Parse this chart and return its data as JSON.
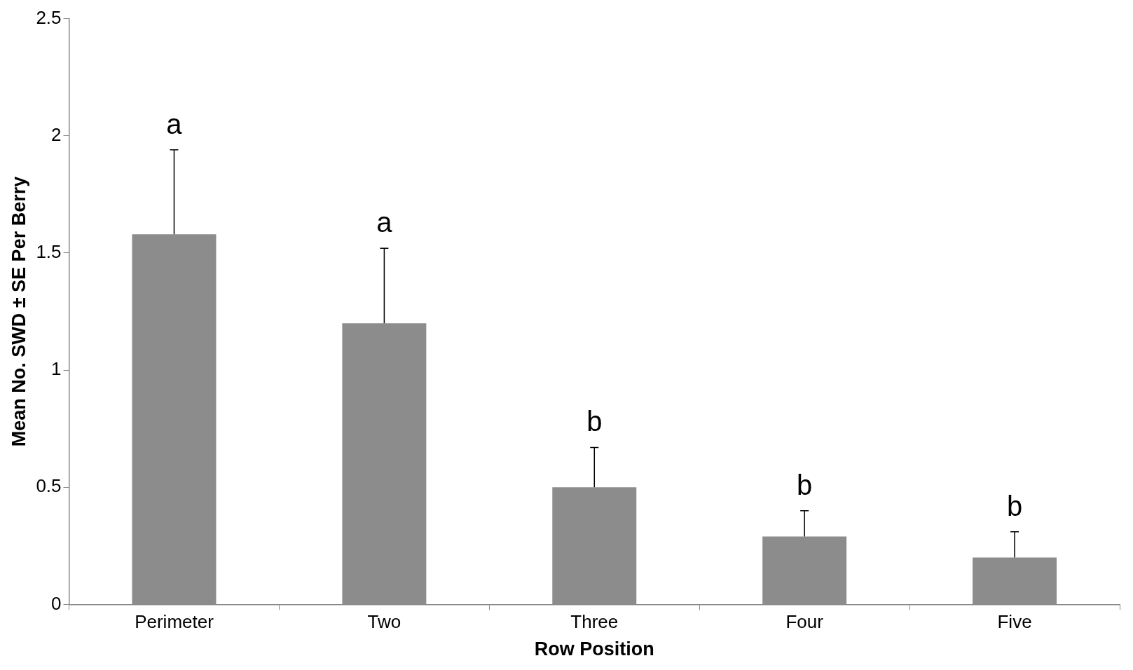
{
  "chart_data": {
    "type": "bar",
    "xlabel": "Row Position",
    "ylabel": "Mean No. SWD ± SE Per Berry",
    "categories": [
      "Perimeter",
      "Two",
      "Three",
      "Four",
      "Five"
    ],
    "values": [
      1.58,
      1.2,
      0.5,
      0.29,
      0.2
    ],
    "errors": [
      [
        1.58,
        1.94
      ],
      [
        1.2,
        1.52
      ],
      [
        0.5,
        0.67
      ],
      [
        0.29,
        0.4
      ],
      [
        0.2,
        0.31
      ]
    ],
    "color": "#8c8c8c",
    "ylim": [
      0,
      2.5
    ],
    "yticks": [
      0,
      0.5,
      1,
      1.5,
      2,
      2.5
    ],
    "grid": false,
    "legend": false,
    "annotations": [
      "a",
      "a",
      "b",
      "b",
      "b"
    ]
  }
}
